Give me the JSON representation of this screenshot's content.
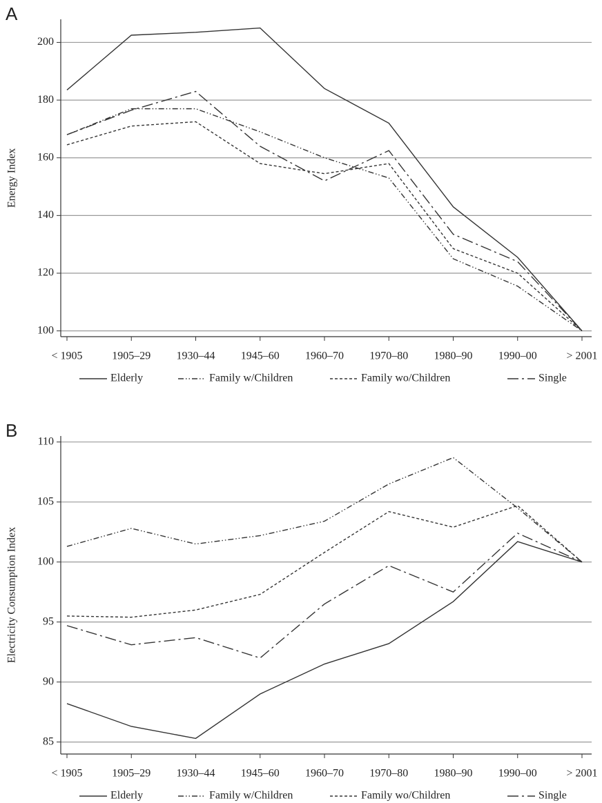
{
  "chart_data": [
    {
      "type": "line",
      "panel": "A",
      "ylabel": "Energy Index",
      "categories": [
        "< 1905",
        "1905–29",
        "1930–44",
        "1945–60",
        "1960–70",
        "1970–80",
        "1980–90",
        "1990–00",
        "> 2001"
      ],
      "ylim": [
        98,
        208
      ],
      "yticks": [
        100,
        120,
        140,
        160,
        180,
        200
      ],
      "grid": true,
      "series": [
        {
          "name": "Elderly",
          "color": "#333333",
          "dash": "none",
          "values": [
            183.5,
            202.5,
            203.5,
            205,
            184,
            172,
            143,
            125.5,
            100
          ]
        },
        {
          "name": "Family w/Children",
          "color": "#333333",
          "dash": "8,3,1.5,3,1.5,3",
          "values": [
            168,
            177,
            177,
            169,
            160,
            153,
            125,
            115.5,
            100
          ]
        },
        {
          "name": "Family wo/Children",
          "color": "#333333",
          "dash": "4,3",
          "values": [
            164.5,
            171,
            172.5,
            158,
            154.5,
            158,
            128.5,
            120,
            100
          ]
        },
        {
          "name": "Single",
          "color": "#333333",
          "dash": "16,5,3,5",
          "values": [
            168,
            176.5,
            183,
            164,
            152,
            162.5,
            133.5,
            124,
            100
          ]
        }
      ]
    },
    {
      "type": "line",
      "panel": "B",
      "ylabel": "Electricity Consumption Index",
      "categories": [
        "< 1905",
        "1905–29",
        "1930–44",
        "1945–60",
        "1960–70",
        "1970–80",
        "1980–90",
        "1990–00",
        "> 2001"
      ],
      "ylim": [
        84,
        110.5
      ],
      "yticks": [
        85,
        90,
        95,
        100,
        105,
        110
      ],
      "grid": true,
      "series": [
        {
          "name": "Elderly",
          "color": "#333333",
          "dash": "none",
          "values": [
            88.2,
            86.3,
            85.3,
            89,
            91.5,
            93.2,
            96.7,
            101.7,
            100
          ]
        },
        {
          "name": "Family w/Children",
          "color": "#333333",
          "dash": "8,3,1.5,3,1.5,3",
          "values": [
            101.3,
            102.8,
            101.5,
            102.2,
            103.4,
            106.5,
            108.7,
            104.5,
            100
          ]
        },
        {
          "name": "Family wo/Children",
          "color": "#333333",
          "dash": "4,3",
          "values": [
            95.5,
            95.4,
            96,
            97.3,
            100.8,
            104.2,
            102.9,
            104.7,
            100
          ]
        },
        {
          "name": "Single",
          "color": "#333333",
          "dash": "16,5,3,5",
          "values": [
            94.7,
            93.1,
            93.7,
            92,
            96.5,
            99.7,
            97.5,
            102.4,
            100
          ]
        }
      ]
    }
  ]
}
